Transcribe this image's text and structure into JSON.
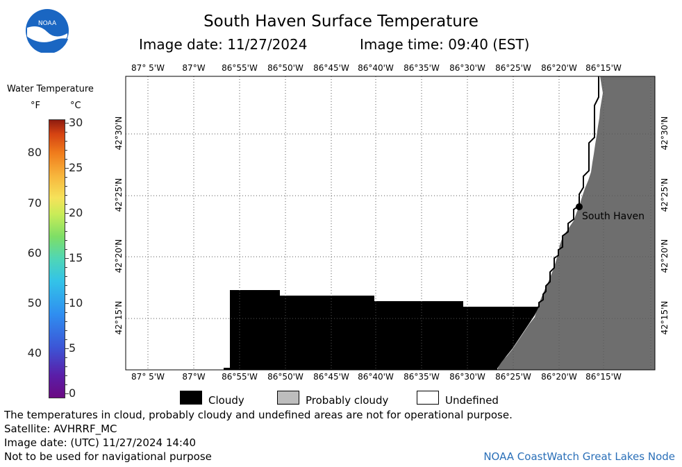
{
  "header": {
    "title": "South Haven Surface Temperature",
    "image_date": "Image date: 11/27/2024",
    "image_time": "Image time: 09:40 (EST)"
  },
  "logo": {
    "text": "NOAA",
    "icon": "noaa-logo-icon"
  },
  "colorbar": {
    "title": "Water Temperature",
    "unit_f": "°F",
    "unit_c": "°C",
    "f_ticks": [
      {
        "label": "80",
        "value": 80
      },
      {
        "label": "70",
        "value": 70
      },
      {
        "label": "60",
        "value": 60
      },
      {
        "label": "50",
        "value": 50
      },
      {
        "label": "40",
        "value": 40
      }
    ],
    "c_ticks": [
      {
        "label": "30",
        "value": 30
      },
      {
        "label": "25",
        "value": 25
      },
      {
        "label": "20",
        "value": 20
      },
      {
        "label": "15",
        "value": 15
      },
      {
        "label": "10",
        "value": 10
      },
      {
        "label": "5",
        "value": 5
      },
      {
        "label": "0",
        "value": 0
      }
    ],
    "range_c": [
      0,
      30
    ],
    "colors": {
      "low": "#6a0a82",
      "high": "#8f1c10"
    }
  },
  "map": {
    "lon_labels": [
      "87° 5'W",
      "87°W",
      "86°55'W",
      "86°50'W",
      "86°45'W",
      "86°40'W",
      "86°35'W",
      "86°30'W",
      "86°25'W",
      "86°20'W",
      "86°15'W"
    ],
    "lat_labels": [
      "42°30'N",
      "42°25'N",
      "42°20'N",
      "42°15'N"
    ],
    "marker": {
      "label": "South Haven"
    },
    "colors": {
      "cloudy": "#000000",
      "probably_cloudy": "#6e6e6e",
      "undefined": "#ffffff"
    }
  },
  "legend": {
    "cloudy": "Cloudy",
    "probably_cloudy": "Probably cloudy",
    "undefined": "Undefined"
  },
  "footer": {
    "disclaimer": "The temperatures in cloud, probably cloudy and undefined areas are not for operational purpose.",
    "satellite": "Satellite: AVHRRF_MC",
    "utc_date": "Image date: (UTC) 11/27/2024  14:40",
    "nav_warning": "Not to be used for navigational purpose",
    "credit": "NOAA CoastWatch Great Lakes Node"
  }
}
